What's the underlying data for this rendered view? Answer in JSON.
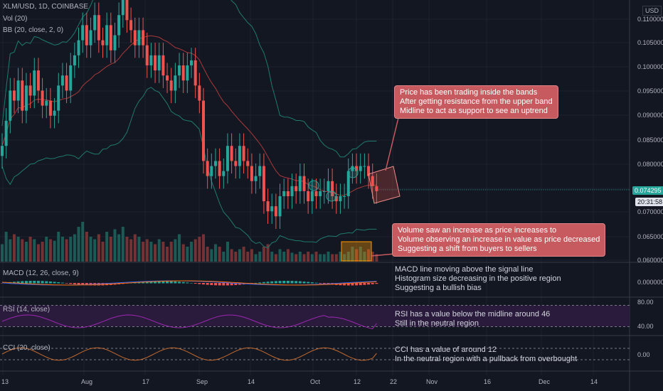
{
  "header": {
    "symbol_line": "XLM/USD, 1D, COINBASE",
    "vol_label": "Vol (20)",
    "bb_label": "BB (20, close, 2, 0)",
    "currency": "USD"
  },
  "price_axis": {
    "ticks": [
      "0.110000",
      "0.105000",
      "0.100000",
      "0.095000",
      "0.090000",
      "0.085000",
      "0.080000",
      "0.070000",
      "0.065000",
      "0.060000"
    ],
    "last_price": "0.074295",
    "countdown": "20:31:58",
    "last_price_color": "#26a69a",
    "countdown_color": "#131722"
  },
  "date_axis": [
    "13",
    "Aug",
    "17",
    "Sep",
    "14",
    "Oct",
    "12",
    "22",
    "Nov",
    "16",
    "Dec",
    "14"
  ],
  "panes": {
    "macd": {
      "label": "MACD (12, 26, close, 9)",
      "tick": "0.000000"
    },
    "rsi": {
      "label": "RSI (14, close)",
      "ticks": [
        "80.00",
        "40.00"
      ]
    },
    "cci": {
      "label": "CCI (20, close)",
      "tick": "0.00"
    }
  },
  "annotations": {
    "bands": [
      "Price has been trading inside the bands",
      "After getting resistance from the upper band",
      "Midline to act as support to see an uptrend"
    ],
    "volume": [
      "Volume saw an increase as price increases to",
      "Volume observing an increase in value as price decreased",
      "Suggesting a shift from buyers to sellers"
    ],
    "macd": [
      "MACD line moving above the signal line",
      "Histogram size decreasing in the positive region",
      "Suggesting a bullish bias"
    ],
    "rsi": [
      "RSI has a value below the midline around 46",
      "Still in the neutral region"
    ],
    "cci": [
      "CCI has a value of around 12",
      "In the neutral region with a pullback from overbought"
    ]
  },
  "colors": {
    "up": "#26a69a",
    "down": "#ef5350",
    "band": "#1f7a6e",
    "basis": "#a8393a",
    "bubble": "#c65a5e",
    "rsi_line": "#9c27b0",
    "rsi_fill": "#2a1b3d",
    "cci_line": "#c3692e"
  },
  "chart_data": {
    "type": "candlestick",
    "x_range": [
      "2020-07-13",
      "2020-12-20"
    ],
    "y_range": [
      0.06,
      0.112
    ],
    "last_close": 0.074295,
    "closes": [
      0.083,
      0.088,
      0.094,
      0.092,
      0.096,
      0.09,
      0.095,
      0.093,
      0.098,
      0.094,
      0.091,
      0.092,
      0.089,
      0.09,
      0.095,
      0.097,
      0.094,
      0.099,
      0.101,
      0.104,
      0.107,
      0.103,
      0.106,
      0.109,
      0.104,
      0.103,
      0.107,
      0.102,
      0.105,
      0.109,
      0.112,
      0.108,
      0.106,
      0.103,
      0.106,
      0.103,
      0.099,
      0.101,
      0.098,
      0.101,
      0.097,
      0.096,
      0.094,
      0.097,
      0.099,
      0.096,
      0.099,
      0.1,
      0.095,
      0.092,
      0.08,
      0.077,
      0.079,
      0.08,
      0.077,
      0.078,
      0.083,
      0.08,
      0.079,
      0.083,
      0.08,
      0.079,
      0.076,
      0.077,
      0.079,
      0.072,
      0.07,
      0.071,
      0.069,
      0.073,
      0.074,
      0.073,
      0.075,
      0.074,
      0.077,
      0.074,
      0.072,
      0.074,
      0.073,
      0.074,
      0.074,
      0.076,
      0.073,
      0.072,
      0.073,
      0.073,
      0.078,
      0.079,
      0.078,
      0.079,
      0.079,
      0.077,
      0.075,
      0.074
    ],
    "volumes": [
      0.35,
      0.6,
      0.45,
      0.55,
      0.5,
      0.45,
      0.4,
      0.5,
      0.45,
      0.35,
      0.4,
      0.5,
      0.45,
      0.42,
      0.6,
      0.5,
      0.45,
      0.5,
      0.55,
      0.7,
      0.8,
      0.6,
      0.5,
      0.45,
      0.55,
      0.4,
      0.6,
      0.5,
      0.65,
      0.55,
      0.7,
      0.5,
      0.45,
      0.55,
      0.5,
      0.4,
      0.45,
      0.4,
      0.35,
      0.45,
      0.4,
      0.3,
      0.4,
      0.45,
      0.55,
      0.35,
      0.3,
      0.4,
      0.45,
      0.5,
      0.55,
      0.3,
      0.25,
      0.35,
      0.3,
      0.2,
      0.4,
      0.25,
      0.2,
      0.25,
      0.3,
      0.2,
      0.25,
      0.15,
      0.2,
      0.3,
      0.35,
      0.2,
      0.15,
      0.25,
      0.2,
      0.25,
      0.18,
      0.15,
      0.2,
      0.15,
      0.2,
      0.15,
      0.2,
      0.15,
      0.15,
      0.2,
      0.15,
      0.15,
      0.2,
      0.15,
      0.2,
      0.3,
      0.25,
      0.3,
      0.2,
      0.25,
      0.2,
      0.15
    ],
    "macd_value": 0.0,
    "rsi_value": 46,
    "rsi_levels": [
      80,
      40
    ],
    "cci_value": 12
  }
}
